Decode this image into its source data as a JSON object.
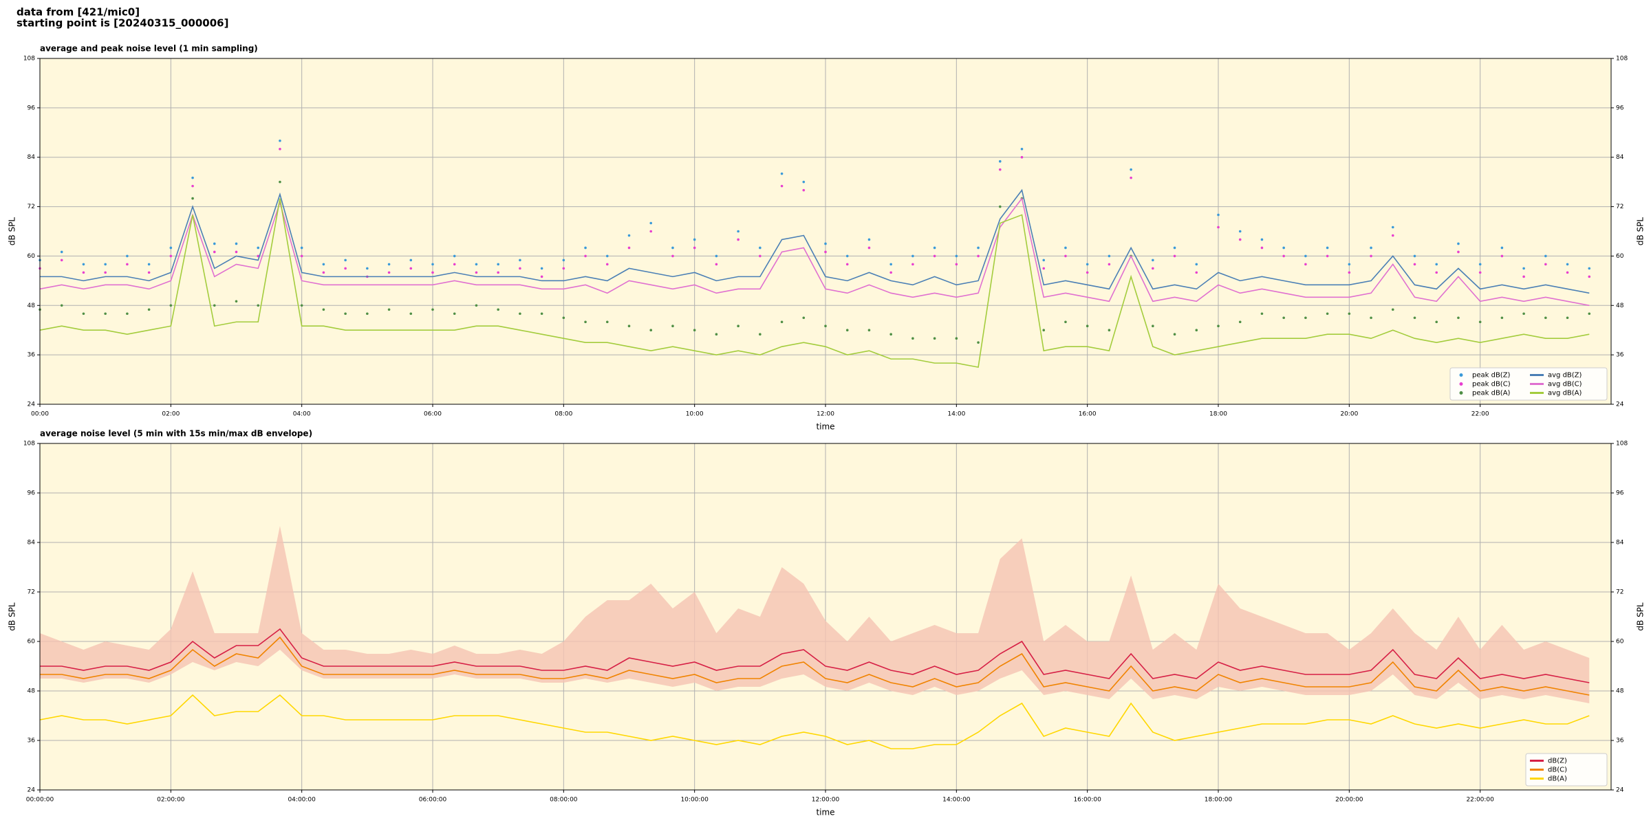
{
  "header": {
    "lines": [
      "data from [421/mic0]",
      "starting point is [20240315_000006]"
    ]
  },
  "chart_data": [
    {
      "type": "line",
      "title": "average and peak noise level (1 min sampling)",
      "xlabel": "time",
      "ylabel": "dB SPL",
      "grid": true,
      "legend": "lower right",
      "legend_ncol": 2,
      "background": "#fff8dc",
      "xlim": [
        0,
        1440
      ],
      "xticks": [
        {
          "value": 0,
          "label": "00:00"
        },
        {
          "value": 120,
          "label": "02:00"
        },
        {
          "value": 240,
          "label": "04:00"
        },
        {
          "value": 360,
          "label": "06:00"
        },
        {
          "value": 480,
          "label": "08:00"
        },
        {
          "value": 600,
          "label": "10:00"
        },
        {
          "value": 720,
          "label": "12:00"
        },
        {
          "value": 840,
          "label": "14:00"
        },
        {
          "value": 960,
          "label": "16:00"
        },
        {
          "value": 1080,
          "label": "18:00"
        },
        {
          "value": 1200,
          "label": "20:00"
        },
        {
          "value": 1320,
          "label": "22:00"
        }
      ],
      "ylim": [
        24,
        108
      ],
      "yticks": [
        24,
        36,
        48,
        60,
        72,
        84,
        96,
        108
      ],
      "x": [
        0,
        20,
        40,
        60,
        80,
        100,
        120,
        140,
        160,
        180,
        200,
        220,
        240,
        260,
        280,
        300,
        320,
        340,
        360,
        380,
        400,
        420,
        440,
        460,
        480,
        500,
        520,
        540,
        560,
        580,
        600,
        620,
        640,
        660,
        680,
        700,
        720,
        740,
        760,
        780,
        800,
        820,
        840,
        860,
        880,
        900,
        920,
        940,
        960,
        980,
        1000,
        1020,
        1040,
        1060,
        1080,
        1100,
        1120,
        1140,
        1160,
        1180,
        1200,
        1220,
        1240,
        1260,
        1280,
        1300,
        1320,
        1340,
        1360,
        1380,
        1400,
        1420
      ],
      "series": [
        {
          "name": "peak dB(Z)",
          "style": "dots",
          "color": "#3a9ad9",
          "values": [
            59,
            61,
            58,
            58,
            60,
            58,
            62,
            79,
            63,
            63,
            62,
            88,
            62,
            58,
            59,
            57,
            58,
            59,
            58,
            60,
            58,
            58,
            59,
            57,
            59,
            62,
            60,
            65,
            68,
            62,
            64,
            60,
            66,
            62,
            80,
            78,
            63,
            60,
            64,
            58,
            60,
            62,
            60,
            62,
            83,
            86,
            59,
            62,
            58,
            60,
            81,
            59,
            62,
            58,
            70,
            66,
            64,
            62,
            60,
            62,
            58,
            62,
            67,
            60,
            58,
            63,
            58,
            62,
            57,
            60,
            58,
            57
          ]
        },
        {
          "name": "peak dB(C)",
          "style": "dots",
          "color": "#e83fcf",
          "values": [
            57,
            59,
            56,
            56,
            58,
            56,
            60,
            77,
            61,
            61,
            60,
            86,
            60,
            56,
            57,
            55,
            56,
            57,
            56,
            58,
            56,
            56,
            57,
            55,
            57,
            60,
            58,
            62,
            66,
            60,
            62,
            58,
            64,
            60,
            77,
            76,
            61,
            58,
            62,
            56,
            58,
            60,
            58,
            60,
            81,
            84,
            57,
            60,
            56,
            58,
            79,
            57,
            60,
            56,
            67,
            64,
            62,
            60,
            58,
            60,
            56,
            60,
            65,
            58,
            56,
            61,
            56,
            60,
            55,
            58,
            56,
            55
          ]
        },
        {
          "name": "peak dB(A)",
          "style": "dots",
          "color": "#4f8f45",
          "values": [
            47,
            48,
            46,
            46,
            46,
            47,
            48,
            74,
            48,
            49,
            48,
            78,
            48,
            47,
            46,
            46,
            47,
            46,
            47,
            46,
            48,
            47,
            46,
            46,
            45,
            44,
            44,
            43,
            42,
            43,
            42,
            41,
            43,
            41,
            44,
            45,
            43,
            42,
            42,
            41,
            40,
            40,
            40,
            39,
            72,
            74,
            42,
            44,
            43,
            42,
            60,
            43,
            41,
            42,
            43,
            44,
            46,
            45,
            45,
            46,
            46,
            45,
            47,
            45,
            44,
            45,
            44,
            45,
            46,
            45,
            45,
            46
          ]
        },
        {
          "name": "avg dB(Z)",
          "style": "line",
          "color": "#4a7fb5",
          "values": [
            55,
            55,
            54,
            55,
            55,
            54,
            56,
            72,
            57,
            60,
            59,
            75,
            56,
            55,
            55,
            55,
            55,
            55,
            55,
            56,
            55,
            55,
            55,
            54,
            54,
            55,
            54,
            57,
            56,
            55,
            56,
            54,
            55,
            55,
            64,
            65,
            55,
            54,
            56,
            54,
            53,
            55,
            53,
            54,
            69,
            76,
            53,
            54,
            53,
            52,
            62,
            52,
            53,
            52,
            56,
            54,
            55,
            54,
            53,
            53,
            53,
            54,
            60,
            53,
            52,
            57,
            52,
            53,
            52,
            53,
            52,
            51
          ]
        },
        {
          "name": "avg dB(C)",
          "style": "line",
          "color": "#e070d0",
          "values": [
            52,
            53,
            52,
            53,
            53,
            52,
            54,
            70,
            55,
            58,
            57,
            73,
            54,
            53,
            53,
            53,
            53,
            53,
            53,
            54,
            53,
            53,
            53,
            52,
            52,
            53,
            51,
            54,
            53,
            52,
            53,
            51,
            52,
            52,
            61,
            62,
            52,
            51,
            53,
            51,
            50,
            51,
            50,
            51,
            67,
            74,
            50,
            51,
            50,
            49,
            60,
            49,
            50,
            49,
            53,
            51,
            52,
            51,
            50,
            50,
            50,
            51,
            58,
            50,
            49,
            55,
            49,
            50,
            49,
            50,
            49,
            48
          ]
        },
        {
          "name": "avg dB(A)",
          "style": "line",
          "color": "#a3cc3c",
          "values": [
            42,
            43,
            42,
            42,
            41,
            42,
            43,
            70,
            43,
            44,
            44,
            74,
            43,
            43,
            42,
            42,
            42,
            42,
            42,
            42,
            43,
            43,
            42,
            41,
            40,
            39,
            39,
            38,
            37,
            38,
            37,
            36,
            37,
            36,
            38,
            39,
            38,
            36,
            37,
            35,
            35,
            34,
            34,
            33,
            68,
            70,
            37,
            38,
            38,
            37,
            55,
            38,
            36,
            37,
            38,
            39,
            40,
            40,
            40,
            41,
            41,
            40,
            42,
            40,
            39,
            40,
            39,
            40,
            41,
            40,
            40,
            41
          ]
        }
      ]
    },
    {
      "type": "line",
      "title": "average noise level (5 min with 15s min/max dB envelope)",
      "xlabel": "time",
      "ylabel": "dB SPL",
      "grid": true,
      "legend": "lower right",
      "legend_ncol": 1,
      "background": "#fff8dc",
      "xlim": [
        0,
        1440
      ],
      "xticks": [
        {
          "value": 0,
          "label": "00:00:00"
        },
        {
          "value": 120,
          "label": "02:00:00"
        },
        {
          "value": 240,
          "label": "04:00:00"
        },
        {
          "value": 360,
          "label": "06:00:00"
        },
        {
          "value": 480,
          "label": "08:00:00"
        },
        {
          "value": 600,
          "label": "10:00:00"
        },
        {
          "value": 720,
          "label": "12:00:00"
        },
        {
          "value": 840,
          "label": "14:00:00"
        },
        {
          "value": 960,
          "label": "16:00:00"
        },
        {
          "value": 1080,
          "label": "18:00:00"
        },
        {
          "value": 1200,
          "label": "20:00:00"
        },
        {
          "value": 1320,
          "label": "22:00:00"
        }
      ],
      "ylim": [
        24,
        108
      ],
      "yticks": [
        24,
        36,
        48,
        60,
        72,
        84,
        96,
        108
      ],
      "x": [
        0,
        20,
        40,
        60,
        80,
        100,
        120,
        140,
        160,
        180,
        200,
        220,
        240,
        260,
        280,
        300,
        320,
        340,
        360,
        380,
        400,
        420,
        440,
        460,
        480,
        500,
        520,
        540,
        560,
        580,
        600,
        620,
        640,
        660,
        680,
        700,
        720,
        740,
        760,
        780,
        800,
        820,
        840,
        860,
        880,
        900,
        920,
        940,
        960,
        980,
        1000,
        1020,
        1040,
        1060,
        1080,
        1100,
        1120,
        1140,
        1160,
        1180,
        1200,
        1220,
        1240,
        1260,
        1280,
        1300,
        1320,
        1340,
        1360,
        1380,
        1400,
        1420
      ],
      "envelope": {
        "color": "#f5c3b3",
        "upper": [
          62,
          60,
          58,
          60,
          59,
          58,
          63,
          77,
          62,
          62,
          62,
          88,
          62,
          58,
          58,
          57,
          57,
          58,
          57,
          59,
          57,
          57,
          58,
          57,
          60,
          66,
          70,
          70,
          74,
          68,
          72,
          62,
          68,
          66,
          78,
          74,
          65,
          60,
          66,
          60,
          62,
          64,
          62,
          62,
          80,
          85,
          60,
          64,
          60,
          60,
          76,
          58,
          62,
          58,
          74,
          68,
          66,
          64,
          62,
          62,
          58,
          62,
          68,
          62,
          58,
          66,
          58,
          64,
          58,
          60,
          58,
          56
        ],
        "lower": [
          51,
          51,
          50,
          51,
          51,
          50,
          52,
          55,
          53,
          55,
          54,
          58,
          53,
          51,
          51,
          51,
          51,
          51,
          51,
          52,
          51,
          51,
          51,
          50,
          50,
          51,
          50,
          51,
          50,
          49,
          50,
          48,
          49,
          49,
          51,
          52,
          49,
          48,
          50,
          48,
          47,
          49,
          47,
          48,
          51,
          53,
          47,
          48,
          47,
          46,
          51,
          46,
          47,
          46,
          49,
          48,
          49,
          48,
          47,
          47,
          47,
          48,
          52,
          47,
          46,
          50,
          46,
          47,
          46,
          47,
          46,
          45
        ]
      },
      "series": [
        {
          "name": "dB(Z)",
          "style": "line",
          "color": "#d61f45",
          "values": [
            54,
            54,
            53,
            54,
            54,
            53,
            55,
            60,
            56,
            59,
            59,
            63,
            56,
            54,
            54,
            54,
            54,
            54,
            54,
            55,
            54,
            54,
            54,
            53,
            53,
            54,
            53,
            56,
            55,
            54,
            55,
            53,
            54,
            54,
            57,
            58,
            54,
            53,
            55,
            53,
            52,
            54,
            52,
            53,
            57,
            60,
            52,
            53,
            52,
            51,
            57,
            51,
            52,
            51,
            55,
            53,
            54,
            53,
            52,
            52,
            52,
            53,
            58,
            52,
            51,
            56,
            51,
            52,
            51,
            52,
            51,
            50
          ]
        },
        {
          "name": "dB(C)",
          "style": "line",
          "color": "#f08300",
          "values": [
            52,
            52,
            51,
            52,
            52,
            51,
            53,
            58,
            54,
            57,
            56,
            61,
            54,
            52,
            52,
            52,
            52,
            52,
            52,
            53,
            52,
            52,
            52,
            51,
            51,
            52,
            51,
            53,
            52,
            51,
            52,
            50,
            51,
            51,
            54,
            55,
            51,
            50,
            52,
            50,
            49,
            51,
            49,
            50,
            54,
            57,
            49,
            50,
            49,
            48,
            54,
            48,
            49,
            48,
            52,
            50,
            51,
            50,
            49,
            49,
            49,
            50,
            55,
            49,
            48,
            53,
            48,
            49,
            48,
            49,
            48,
            47
          ]
        },
        {
          "name": "dB(A)",
          "style": "line",
          "color": "#ffd700",
          "values": [
            41,
            42,
            41,
            41,
            40,
            41,
            42,
            47,
            42,
            43,
            43,
            47,
            42,
            42,
            41,
            41,
            41,
            41,
            41,
            42,
            42,
            42,
            41,
            40,
            39,
            38,
            38,
            37,
            36,
            37,
            36,
            35,
            36,
            35,
            37,
            38,
            37,
            35,
            36,
            34,
            34,
            35,
            35,
            38,
            42,
            45,
            37,
            39,
            38,
            37,
            45,
            38,
            36,
            37,
            38,
            39,
            40,
            40,
            40,
            41,
            41,
            40,
            42,
            40,
            39,
            40,
            39,
            40,
            41,
            40,
            40,
            42
          ]
        }
      ]
    }
  ]
}
